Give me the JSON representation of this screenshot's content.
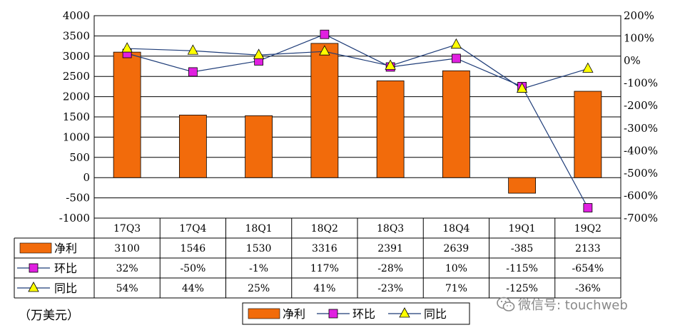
{
  "chart_data": {
    "type": "bar",
    "categories": [
      "17Q3",
      "17Q4",
      "18Q1",
      "18Q2",
      "18Q3",
      "18Q4",
      "19Q1",
      "19Q2"
    ],
    "series": [
      {
        "name": "净利",
        "kind": "bar",
        "axis": "left",
        "values": [
          3100,
          1546,
          1530,
          3316,
          2391,
          2639,
          -385,
          2133
        ],
        "labels": [
          "3100",
          "1546",
          "1530",
          "3316",
          "2391",
          "2639",
          "-385",
          "2133"
        ],
        "color": "#f26b0b"
      },
      {
        "name": "环比",
        "kind": "line",
        "axis": "right",
        "values": [
          32,
          -50,
          -1,
          117,
          -28,
          10,
          -115,
          -654
        ],
        "labels": [
          "32%",
          "-50%",
          "-1%",
          "117%",
          "-28%",
          "10%",
          "-115%",
          "-654%"
        ],
        "color": "#e020e0",
        "marker": "square"
      },
      {
        "name": "同比",
        "kind": "line",
        "axis": "right",
        "values": [
          54,
          44,
          25,
          41,
          -23,
          71,
          -125,
          -36
        ],
        "labels": [
          "54%",
          "44%",
          "25%",
          "41%",
          "-23%",
          "71%",
          "-125%",
          "-36%"
        ],
        "color": "#ffff00",
        "marker": "triangle"
      }
    ],
    "y_left": {
      "min": -1000,
      "max": 4000,
      "step": 500,
      "ticks": [
        "4000",
        "3500",
        "3000",
        "2500",
        "2000",
        "1500",
        "1000",
        "500",
        "0",
        "-500",
        "-1000"
      ]
    },
    "y_right": {
      "min": -700,
      "max": 200,
      "step": 100,
      "ticks": [
        "200%",
        "100%",
        "0%",
        "-100%",
        "-200%",
        "-300%",
        "-400%",
        "-500%",
        "-600%",
        "-700%"
      ]
    },
    "unit_label": "（万美元）",
    "grid": true,
    "legend": "bottom",
    "data_table": true
  },
  "watermark": {
    "text": "微信号: touchweb",
    "icon": "wechat-icon"
  }
}
